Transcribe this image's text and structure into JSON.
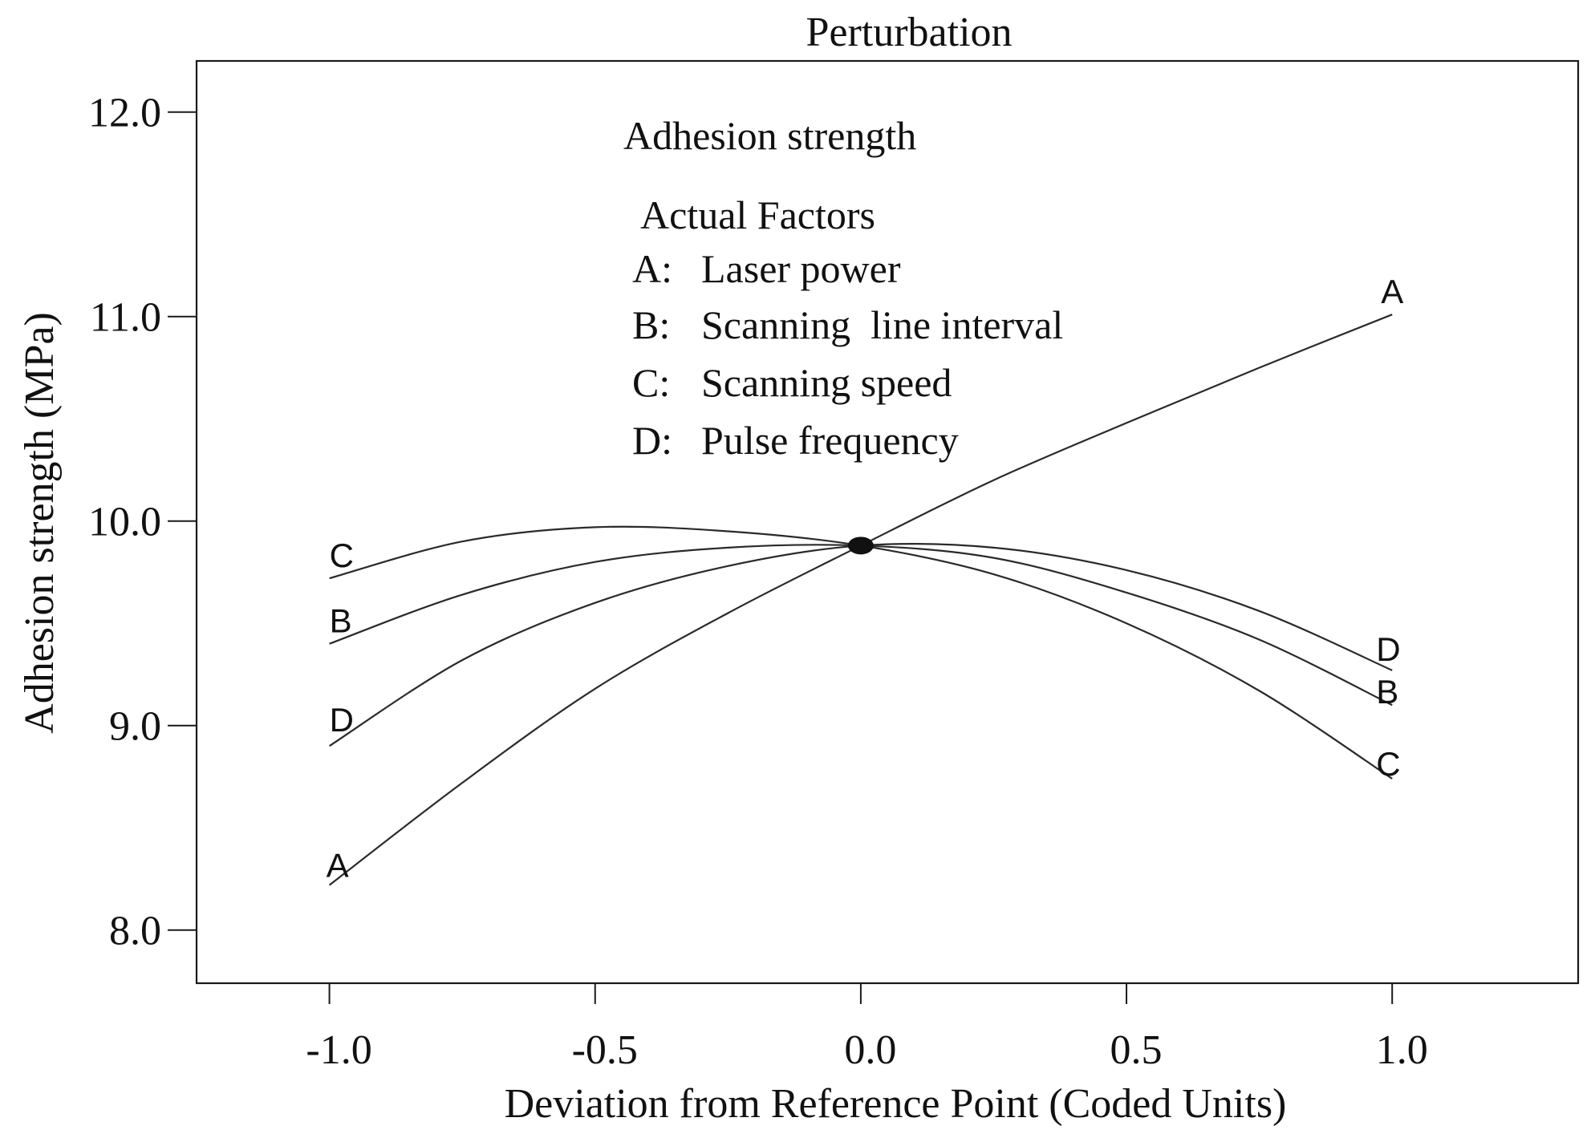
{
  "chart_data": {
    "type": "line",
    "title": "Perturbation",
    "subtitle": "Adhesion strength",
    "xlabel": "Deviation from Reference Point (Coded Units)",
    "ylabel": "Adhesion strength (MPa)",
    "xlim": [
      -1.25,
      1.35
    ],
    "ylim": [
      7.74,
      12.25
    ],
    "x_ticks": [
      -1.0,
      -0.5,
      0.0,
      0.5,
      1.0
    ],
    "x_tick_labels": [
      "-1.0",
      "-0.5",
      "0.0",
      "0.5",
      "1.0"
    ],
    "y_ticks": [
      8.0,
      9.0,
      10.0,
      11.0,
      12.0
    ],
    "y_tick_labels": [
      "8.0",
      "9.0",
      "10.0",
      "11.0",
      "12.0"
    ],
    "grid": false,
    "legend": {
      "heading": "Actual Factors",
      "entries": [
        {
          "key": "A:",
          "text": "Laser power"
        },
        {
          "key": "B:",
          "text": "Scanning  line interval"
        },
        {
          "key": "C:",
          "text": "Scanning speed"
        },
        {
          "key": "D:",
          "text": "Pulse frequency"
        }
      ]
    },
    "reference_point": {
      "x": 0.0,
      "y": 9.88
    },
    "x": [
      -1.0,
      -0.75,
      -0.5,
      -0.25,
      0.0,
      0.25,
      0.5,
      0.75,
      1.0
    ],
    "series": [
      {
        "name": "A",
        "label_start": "A",
        "label_end": "A",
        "values": [
          8.22,
          8.72,
          9.18,
          9.55,
          9.88,
          10.2,
          10.48,
          10.75,
          11.01
        ]
      },
      {
        "name": "B",
        "label_start": "B",
        "label_end": "B",
        "values": [
          9.4,
          9.64,
          9.8,
          9.87,
          9.88,
          9.82,
          9.65,
          9.42,
          9.1
        ]
      },
      {
        "name": "C",
        "label_start": "C",
        "label_end": "C",
        "values": [
          9.72,
          9.9,
          9.97,
          9.95,
          9.88,
          9.74,
          9.5,
          9.17,
          8.74
        ]
      },
      {
        "name": "D",
        "label_start": "D",
        "label_end": "D",
        "values": [
          8.9,
          9.32,
          9.6,
          9.78,
          9.88,
          9.87,
          9.76,
          9.56,
          9.27
        ]
      }
    ]
  }
}
